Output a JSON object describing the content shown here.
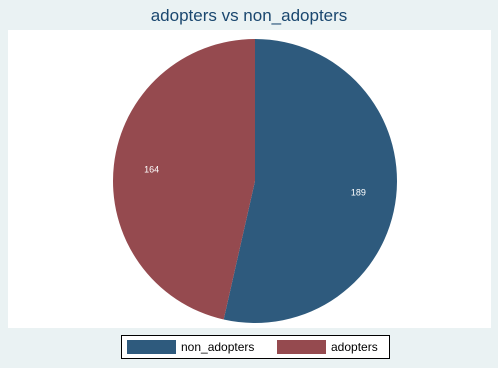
{
  "chart_data": {
    "type": "pie",
    "title": "adopters vs non_adopters",
    "slices": [
      {
        "name": "non_adopters",
        "value": 189,
        "color": "#2e5a7d"
      },
      {
        "name": "adopters",
        "value": 164,
        "color": "#954a4f"
      }
    ],
    "start": "12 o'clock",
    "direction": "clockwise",
    "legend_position": "bottom"
  }
}
